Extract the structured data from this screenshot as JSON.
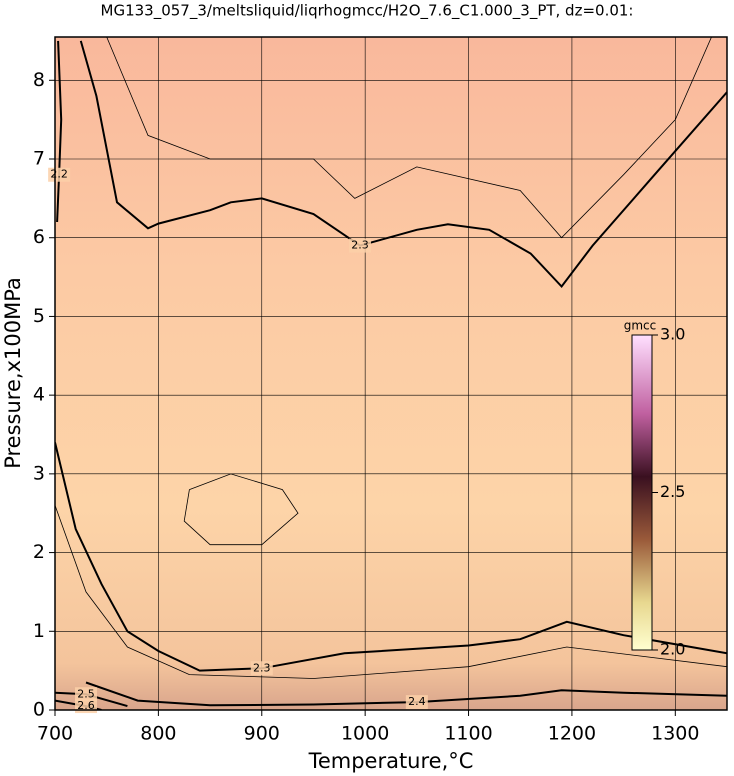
{
  "chart_data": {
    "type": "contour",
    "title": "MG133_057_3/meltsliquid/liqrhogmcc/H2O_7.6_C1.000_3_PT, dz=0.01:",
    "x_label": "Temperature,°C",
    "y_label": "Pressure,x100MPa",
    "xlim": [
      700,
      1350
    ],
    "ylim": [
      0,
      8.55
    ],
    "xticks": [
      700,
      800,
      900,
      1000,
      1100,
      1200,
      1300
    ],
    "yticks": [
      0,
      1,
      2,
      3,
      4,
      5,
      6,
      7,
      8
    ],
    "grid": true,
    "colorbar": {
      "label": "gmcc",
      "lim": [
        2.0,
        3.0
      ],
      "ticks": [
        {
          "value": 2.0,
          "label": "2.0"
        },
        2.5,
        {
          "value": 3.0,
          "label": "3.0"
        }
      ]
    },
    "contours": [
      {
        "level": 2.3,
        "major": true,
        "x": [
          725,
          740,
          760,
          790,
          800,
          850,
          870,
          900,
          950,
          995,
          1050,
          1080,
          1120,
          1160,
          1190,
          1220,
          1280,
          1350
        ],
        "y": [
          8.5,
          7.8,
          6.45,
          6.12,
          6.18,
          6.35,
          6.45,
          6.5,
          6.3,
          5.9,
          6.1,
          6.17,
          6.1,
          5.8,
          5.38,
          5.9,
          6.8,
          7.85
        ]
      },
      {
        "level": 2.3,
        "major": true,
        "x": [
          700,
          720,
          745,
          770,
          800,
          840,
          900,
          980,
          1100,
          1150,
          1195,
          1250,
          1350
        ],
        "y": [
          3.4,
          2.3,
          1.6,
          1.0,
          0.75,
          0.5,
          0.53,
          0.72,
          0.82,
          0.9,
          1.12,
          0.95,
          0.72
        ]
      },
      {
        "level": 2.4,
        "major": true,
        "x": [
          730,
          780,
          850,
          950,
          1050,
          1150,
          1190,
          1250,
          1350
        ],
        "y": [
          0.35,
          0.12,
          0.06,
          0.07,
          0.1,
          0.18,
          0.25,
          0.22,
          0.18
        ]
      },
      {
        "level": 2.2,
        "major": true,
        "x": [
          703,
          706,
          704,
          702
        ],
        "y": [
          8.5,
          7.5,
          6.8,
          6.2
        ]
      },
      {
        "level": 2.5,
        "major": true,
        "x": [
          700,
          730,
          770
        ],
        "y": [
          0.22,
          0.2,
          0.05
        ]
      },
      {
        "level": 2.6,
        "major": true,
        "x": [
          700,
          730,
          745
        ],
        "y": [
          0.12,
          0.05,
          0.0
        ]
      },
      {
        "level": 2.29,
        "major": false,
        "x": [
          750,
          790,
          850,
          950,
          990,
          1050,
          1150,
          1190,
          1250,
          1300,
          1335
        ],
        "y": [
          8.55,
          7.3,
          7.0,
          7.0,
          6.5,
          6.9,
          6.6,
          6.0,
          6.8,
          7.5,
          8.55
        ]
      },
      {
        "level": 2.27,
        "major": false,
        "x": [
          830,
          870,
          920,
          935,
          900,
          850,
          825,
          830
        ],
        "y": [
          2.8,
          3.0,
          2.8,
          2.5,
          2.1,
          2.1,
          2.4,
          2.8
        ]
      },
      {
        "level": 2.31,
        "major": false,
        "x": [
          700,
          730,
          770,
          830,
          950,
          1100,
          1195,
          1350
        ],
        "y": [
          2.6,
          1.5,
          0.8,
          0.45,
          0.4,
          0.55,
          0.8,
          0.55
        ]
      }
    ]
  }
}
